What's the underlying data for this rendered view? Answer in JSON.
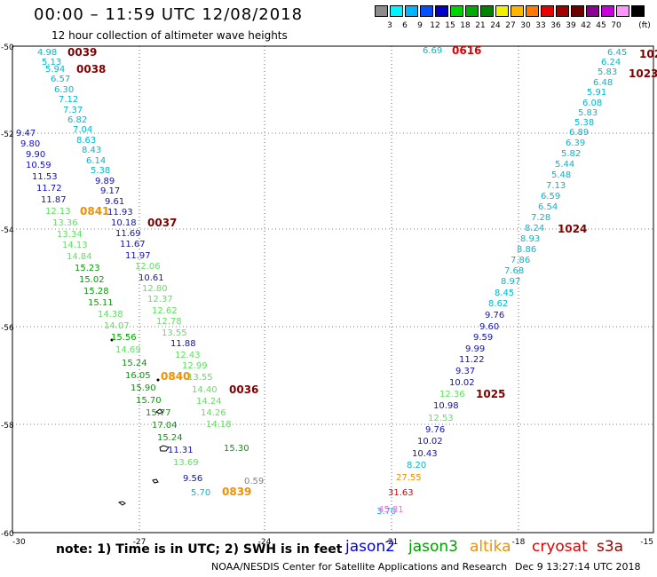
{
  "header": {
    "title": "00:00 – 11:59 UTC 12/08/2018",
    "subtitle": "12 hour collection of altimeter wave heights"
  },
  "legend": {
    "unit": "(ft)",
    "entries": [
      {
        "label": "",
        "color": "#8c8c8c"
      },
      {
        "label": "3",
        "color": "#00f5ff"
      },
      {
        "label": "6",
        "color": "#00b4ff"
      },
      {
        "label": "9",
        "color": "#0050ff"
      },
      {
        "label": "12",
        "color": "#0000c8"
      },
      {
        "label": "15",
        "color": "#00d200"
      },
      {
        "label": "18",
        "color": "#00aa00"
      },
      {
        "label": "21",
        "color": "#008200"
      },
      {
        "label": "24",
        "color": "#f0f000"
      },
      {
        "label": "27",
        "color": "#ffb400"
      },
      {
        "label": "30",
        "color": "#ff7800"
      },
      {
        "label": "33",
        "color": "#e60000"
      },
      {
        "label": "36",
        "color": "#a00000"
      },
      {
        "label": "39",
        "color": "#6e0000"
      },
      {
        "label": "42",
        "color": "#8c0096"
      },
      {
        "label": "45",
        "color": "#c800dc"
      },
      {
        "label": "70",
        "color": "#ff96ff"
      },
      {
        "label": "",
        "color": "#000000"
      }
    ]
  },
  "axes": {
    "lon_ticks": [
      "-30",
      "-27",
      "-24",
      "-21",
      "-18",
      "-15"
    ],
    "lat_ticks": [
      "-50",
      "-52",
      "-54",
      "-56",
      "-58",
      "-60"
    ]
  },
  "colors": {
    "cyan": "#00b8d0",
    "lightgreen": "#60e060",
    "green": "#00a000",
    "blue": "#1010c0",
    "dark": "#800000",
    "orange": "#f09000",
    "red": "#e00000",
    "pink": "#f070e0",
    "gray": "#808080"
  },
  "tracks": [
    {
      "name": "track-a",
      "items": [
        {
          "t": "4.98",
          "c": "cyan"
        },
        {
          "t": "5.13",
          "c": "cyan"
        },
        {
          "t": "5.94",
          "c": "cyan"
        },
        {
          "t": "6.57",
          "c": "cyan"
        },
        {
          "t": "6.30",
          "c": "cyan"
        },
        {
          "t": "7.12",
          "c": "cyan"
        },
        {
          "t": "7.37",
          "c": "cyan"
        },
        {
          "t": "6.82",
          "c": "cyan"
        },
        {
          "t": "7.04",
          "c": "cyan"
        },
        {
          "t": "8.63",
          "c": "cyan"
        },
        {
          "t": "8.43",
          "c": "cyan"
        },
        {
          "t": "6.14",
          "c": "cyan"
        },
        {
          "t": "5.38",
          "c": "cyan"
        },
        {
          "t": "9.89",
          "c": "blue"
        },
        {
          "t": "9.17",
          "c": "blue"
        },
        {
          "t": "9.61",
          "c": "blue"
        },
        {
          "t": "11.93",
          "c": "blue"
        },
        {
          "t": "10.18",
          "c": "blue"
        },
        {
          "t": "11.69",
          "c": "blue"
        },
        {
          "t": "11.67",
          "c": "blue"
        },
        {
          "t": "11.97",
          "c": "blue"
        },
        {
          "t": "12.06",
          "c": "lightgreen"
        },
        {
          "t": "10.61",
          "c": "blue"
        },
        {
          "t": "12.80",
          "c": "lightgreen"
        },
        {
          "t": "12.37",
          "c": "lightgreen"
        },
        {
          "t": "12.62",
          "c": "lightgreen"
        },
        {
          "t": "12.78",
          "c": "lightgreen"
        },
        {
          "t": "13.55",
          "c": "lightgreen"
        },
        {
          "t": "11.88",
          "c": "blue"
        },
        {
          "t": "12.43",
          "c": "lightgreen"
        },
        {
          "t": "12.99",
          "c": "lightgreen"
        },
        {
          "t": "13.55",
          "c": "lightgreen"
        },
        {
          "t": "14.40",
          "c": "lightgreen"
        },
        {
          "t": "14.24",
          "c": "lightgreen"
        },
        {
          "t": "14.26",
          "c": "lightgreen"
        },
        {
          "t": "14.18",
          "c": "lightgreen"
        },
        {
          "t": "15.30",
          "c": "green"
        }
      ]
    },
    {
      "name": "track-b",
      "items": [
        {
          "t": "9.47",
          "c": "blue"
        },
        {
          "t": "9.80",
          "c": "blue"
        },
        {
          "t": "9.90",
          "c": "blue"
        },
        {
          "t": "10.59",
          "c": "blue"
        },
        {
          "t": "11.53",
          "c": "blue"
        },
        {
          "t": "11.72",
          "c": "blue"
        },
        {
          "t": "11.87",
          "c": "blue"
        },
        {
          "t": "12.13",
          "c": "lightgreen"
        },
        {
          "t": "13.36",
          "c": "lightgreen"
        },
        {
          "t": "13.34",
          "c": "lightgreen"
        },
        {
          "t": "14.13",
          "c": "lightgreen"
        },
        {
          "t": "14.84",
          "c": "lightgreen"
        },
        {
          "t": "15.23",
          "c": "green"
        },
        {
          "t": "15.02",
          "c": "green"
        },
        {
          "t": "15.28",
          "c": "green"
        },
        {
          "t": "15.11",
          "c": "green"
        },
        {
          "t": "14.38",
          "c": "lightgreen"
        },
        {
          "t": "14.07",
          "c": "lightgreen"
        },
        {
          "t": "15.56",
          "c": "green"
        },
        {
          "t": "14.69",
          "c": "lightgreen"
        },
        {
          "t": "15.24",
          "c": "green"
        },
        {
          "t": "16.05",
          "c": "green"
        },
        {
          "t": "15.90",
          "c": "green"
        },
        {
          "t": "15.70",
          "c": "green"
        },
        {
          "t": "15.77",
          "c": "green"
        },
        {
          "t": "17.04",
          "c": "green"
        },
        {
          "t": "15.24",
          "c": "green"
        },
        {
          "t": "11.31",
          "c": "blue"
        },
        {
          "t": "13.69",
          "c": "lightgreen"
        },
        {
          "t": "9.56",
          "c": "blue"
        },
        {
          "t": "5.70",
          "c": "cyan"
        },
        {
          "t": "0.59",
          "c": "gray"
        }
      ]
    },
    {
      "name": "track-c",
      "items": [
        {
          "t": "3.70",
          "c": "cyan"
        },
        {
          "t": "45.81",
          "c": "pink"
        },
        {
          "t": "31.63",
          "c": "red"
        },
        {
          "t": "27.55",
          "c": "orange"
        },
        {
          "t": "8.20",
          "c": "cyan"
        },
        {
          "t": "10.43",
          "c": "blue"
        },
        {
          "t": "10.02",
          "c": "blue"
        },
        {
          "t": "9.76",
          "c": "blue"
        },
        {
          "t": "12.53",
          "c": "lightgreen"
        },
        {
          "t": "10.98",
          "c": "blue"
        },
        {
          "t": "12.36",
          "c": "lightgreen"
        },
        {
          "t": "10.02",
          "c": "blue"
        },
        {
          "t": "9.37",
          "c": "blue"
        },
        {
          "t": "11.22",
          "c": "blue"
        },
        {
          "t": "9.99",
          "c": "blue"
        },
        {
          "t": "9.59",
          "c": "blue"
        },
        {
          "t": "9.60",
          "c": "blue"
        },
        {
          "t": "9.76",
          "c": "blue"
        },
        {
          "t": "8.62",
          "c": "cyan"
        },
        {
          "t": "8.45",
          "c": "cyan"
        },
        {
          "t": "8.97",
          "c": "cyan"
        },
        {
          "t": "7.68",
          "c": "cyan"
        },
        {
          "t": "7.86",
          "c": "cyan"
        },
        {
          "t": "8.86",
          "c": "cyan"
        },
        {
          "t": "8.93",
          "c": "cyan"
        },
        {
          "t": "8.24",
          "c": "cyan"
        },
        {
          "t": "7.28",
          "c": "cyan"
        },
        {
          "t": "6.54",
          "c": "cyan"
        },
        {
          "t": "6.59",
          "c": "cyan"
        },
        {
          "t": "7.13",
          "c": "cyan"
        },
        {
          "t": "5.48",
          "c": "cyan"
        },
        {
          "t": "5.44",
          "c": "cyan"
        },
        {
          "t": "5.82",
          "c": "cyan"
        },
        {
          "t": "6.39",
          "c": "cyan"
        },
        {
          "t": "6.89",
          "c": "cyan"
        },
        {
          "t": "5.38",
          "c": "cyan"
        },
        {
          "t": "5.83",
          "c": "cyan"
        },
        {
          "t": "6.08",
          "c": "cyan"
        },
        {
          "t": "5.91",
          "c": "cyan"
        },
        {
          "t": "6.48",
          "c": "cyan"
        },
        {
          "t": "5.83",
          "c": "cyan"
        },
        {
          "t": "6.24",
          "c": "cyan"
        },
        {
          "t": "6.45",
          "c": "cyan"
        }
      ]
    }
  ],
  "single_labels": [
    {
      "t": "6.69",
      "c": "cyan"
    }
  ],
  "time_labels": [
    {
      "t": "0039",
      "c": "dark"
    },
    {
      "t": "0038",
      "c": "dark"
    },
    {
      "t": "0841",
      "c": "orange"
    },
    {
      "t": "0037",
      "c": "dark"
    },
    {
      "t": "0840",
      "c": "orange"
    },
    {
      "t": "0036",
      "c": "dark"
    },
    {
      "t": "0839",
      "c": "orange"
    },
    {
      "t": "0616",
      "c": "red"
    },
    {
      "t": "1024",
      "c": "dark"
    },
    {
      "t": "1025",
      "c": "dark"
    },
    {
      "t": "102",
      "c": "dark"
    },
    {
      "t": "1023",
      "c": "dark"
    }
  ],
  "footer": {
    "note": "note: 1) Time is in UTC; 2) SWH is in feet",
    "missions": [
      {
        "t": "jason2",
        "c": "#0000e0"
      },
      {
        "t": "jason3",
        "c": "#00a000"
      },
      {
        "t": "altika",
        "c": "#f09000"
      },
      {
        "t": "cryosat",
        "c": "#e00000"
      },
      {
        "t": "s3a",
        "c": "#a00000"
      }
    ],
    "credit": "NOAA/NESDIS Center for Satellite Applications and Research",
    "date": "Dec  9 13:27:14 UTC 2018"
  }
}
